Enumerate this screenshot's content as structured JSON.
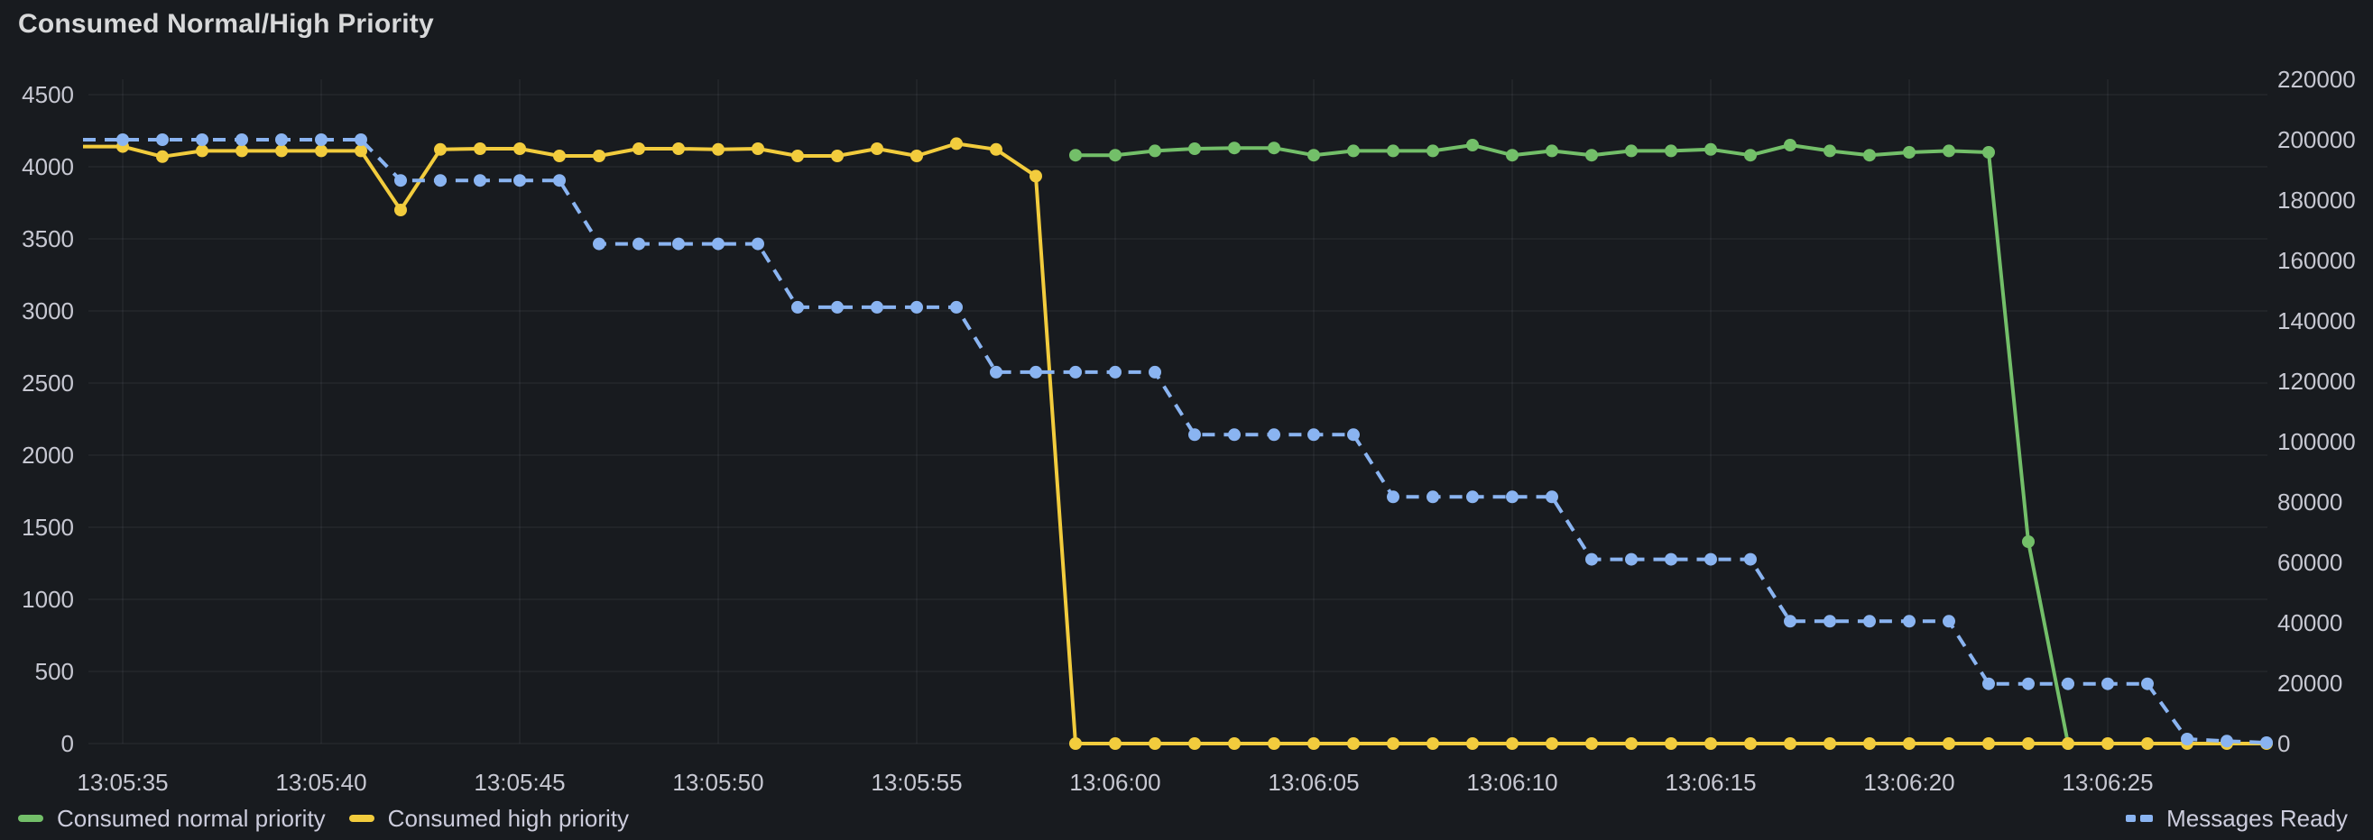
{
  "panel": {
    "title": "Consumed Normal/High Priority"
  },
  "colors": {
    "background": "#181B1F",
    "grid": "rgba(204,204,220,0.07)",
    "tick_text": "#C7C8D2",
    "title_text": "#D8D9DA",
    "legend_text": "#CCCCDC",
    "green": "#73BF69",
    "yellow": "#F2CC3D",
    "blue": "#8AB4F1"
  },
  "legend": {
    "items": [
      {
        "label": "Consumed normal priority",
        "color": "#73BF69",
        "style": "solid"
      },
      {
        "label": "Consumed high priority",
        "color": "#F2CC3D",
        "style": "solid"
      },
      {
        "label": "Messages Ready",
        "color": "#8AB4F1",
        "style": "dashed"
      }
    ]
  },
  "chart_data": {
    "type": "line",
    "title": "Consumed Normal/High Priority",
    "grid": true,
    "legend_position": "bottom",
    "x_unit": "seconds after 13:05:00",
    "x_range": [
      34.2,
      89.3
    ],
    "x_ticks": [
      {
        "t": 35,
        "label": "13:05:35"
      },
      {
        "t": 40,
        "label": "13:05:40"
      },
      {
        "t": 45,
        "label": "13:05:45"
      },
      {
        "t": 50,
        "label": "13:05:50"
      },
      {
        "t": 55,
        "label": "13:05:55"
      },
      {
        "t": 60,
        "label": "13:06:00"
      },
      {
        "t": 65,
        "label": "13:06:05"
      },
      {
        "t": 70,
        "label": "13:06:10"
      },
      {
        "t": 75,
        "label": "13:06:15"
      },
      {
        "t": 80,
        "label": "13:06:20"
      },
      {
        "t": 85,
        "label": "13:06:25"
      }
    ],
    "left_axis": {
      "min": 0,
      "max": 4500,
      "tick_step": 500,
      "ticks": [
        0,
        500,
        1000,
        1500,
        2000,
        2500,
        3000,
        3500,
        4000,
        4500
      ]
    },
    "right_axis": {
      "min": 0,
      "max": 220000,
      "tick_step": 20000,
      "ticks": [
        0,
        20000,
        40000,
        60000,
        80000,
        100000,
        120000,
        140000,
        160000,
        180000,
        200000,
        220000
      ]
    },
    "series": [
      {
        "name": "Consumed normal priority",
        "color": "#73BF69",
        "axis": "left",
        "style": "solid",
        "points": [
          [
            59,
            4080
          ],
          [
            60,
            4080
          ],
          [
            61,
            4110
          ],
          [
            62,
            4125
          ],
          [
            63,
            4130
          ],
          [
            64,
            4130
          ],
          [
            65,
            4080
          ],
          [
            66,
            4110
          ],
          [
            67,
            4110
          ],
          [
            68,
            4110
          ],
          [
            69,
            4150
          ],
          [
            70,
            4080
          ],
          [
            71,
            4110
          ],
          [
            72,
            4080
          ],
          [
            73,
            4110
          ],
          [
            74,
            4110
          ],
          [
            75,
            4120
          ],
          [
            76,
            4080
          ],
          [
            77,
            4150
          ],
          [
            78,
            4110
          ],
          [
            79,
            4080
          ],
          [
            80,
            4100
          ],
          [
            81,
            4110
          ],
          [
            82,
            4100
          ],
          [
            83,
            1400
          ],
          [
            84,
            0
          ]
        ]
      },
      {
        "name": "Consumed high priority",
        "color": "#F2CC3D",
        "axis": "left",
        "style": "solid",
        "lead_in": [
          34,
          4140
        ],
        "points": [
          [
            35,
            4140
          ],
          [
            36,
            4070
          ],
          [
            37,
            4110
          ],
          [
            38,
            4110
          ],
          [
            39,
            4110
          ],
          [
            40,
            4110
          ],
          [
            41,
            4110
          ],
          [
            42,
            3700
          ],
          [
            43,
            4120
          ],
          [
            44,
            4125
          ],
          [
            45,
            4125
          ],
          [
            46,
            4075
          ],
          [
            47,
            4075
          ],
          [
            48,
            4125
          ],
          [
            49,
            4125
          ],
          [
            50,
            4120
          ],
          [
            51,
            4125
          ],
          [
            52,
            4075
          ],
          [
            53,
            4075
          ],
          [
            54,
            4125
          ],
          [
            55,
            4075
          ],
          [
            56,
            4160
          ],
          [
            57,
            4120
          ],
          [
            58,
            3935
          ],
          [
            59,
            0
          ],
          [
            60,
            0
          ],
          [
            61,
            0
          ],
          [
            62,
            0
          ],
          [
            63,
            0
          ],
          [
            64,
            0
          ],
          [
            65,
            0
          ],
          [
            66,
            0
          ],
          [
            67,
            0
          ],
          [
            68,
            0
          ],
          [
            69,
            0
          ],
          [
            70,
            0
          ],
          [
            71,
            0
          ],
          [
            72,
            0
          ],
          [
            73,
            0
          ],
          [
            74,
            0
          ],
          [
            75,
            0
          ],
          [
            76,
            0
          ],
          [
            77,
            0
          ],
          [
            78,
            0
          ],
          [
            79,
            0
          ],
          [
            80,
            0
          ],
          [
            81,
            0
          ],
          [
            82,
            0
          ],
          [
            83,
            0
          ],
          [
            84,
            0
          ],
          [
            85,
            0
          ],
          [
            86,
            0
          ],
          [
            87,
            0
          ],
          [
            88,
            0
          ],
          [
            89,
            0
          ]
        ]
      },
      {
        "name": "Messages Ready",
        "color": "#8AB4F1",
        "axis": "right",
        "style": "dashed",
        "lead_in": [
          34,
          200000
        ],
        "points": [
          [
            35,
            200000
          ],
          [
            36,
            200000
          ],
          [
            37,
            200000
          ],
          [
            38,
            200000
          ],
          [
            39,
            200000
          ],
          [
            40,
            200000
          ],
          [
            41,
            200000
          ],
          [
            42,
            186500
          ],
          [
            43,
            186500
          ],
          [
            44,
            186500
          ],
          [
            45,
            186500
          ],
          [
            46,
            186500
          ],
          [
            47,
            165500
          ],
          [
            48,
            165500
          ],
          [
            49,
            165500
          ],
          [
            50,
            165500
          ],
          [
            51,
            165500
          ],
          [
            52,
            144500
          ],
          [
            53,
            144500
          ],
          [
            54,
            144500
          ],
          [
            55,
            144500
          ],
          [
            56,
            144500
          ],
          [
            57,
            123000
          ],
          [
            58,
            123000
          ],
          [
            59,
            123000
          ],
          [
            60,
            123000
          ],
          [
            61,
            123000
          ],
          [
            62,
            102300
          ],
          [
            63,
            102300
          ],
          [
            64,
            102300
          ],
          [
            65,
            102300
          ],
          [
            66,
            102300
          ],
          [
            67,
            81700
          ],
          [
            68,
            81700
          ],
          [
            69,
            81700
          ],
          [
            70,
            81700
          ],
          [
            71,
            81700
          ],
          [
            72,
            61000
          ],
          [
            73,
            61000
          ],
          [
            74,
            61000
          ],
          [
            75,
            61000
          ],
          [
            76,
            61000
          ],
          [
            77,
            40500
          ],
          [
            78,
            40500
          ],
          [
            79,
            40500
          ],
          [
            80,
            40500
          ],
          [
            81,
            40500
          ],
          [
            82,
            19800
          ],
          [
            83,
            19800
          ],
          [
            84,
            19800
          ],
          [
            85,
            19800
          ],
          [
            86,
            19800
          ],
          [
            87,
            1500
          ],
          [
            88,
            800
          ],
          [
            89,
            300
          ]
        ]
      }
    ]
  }
}
